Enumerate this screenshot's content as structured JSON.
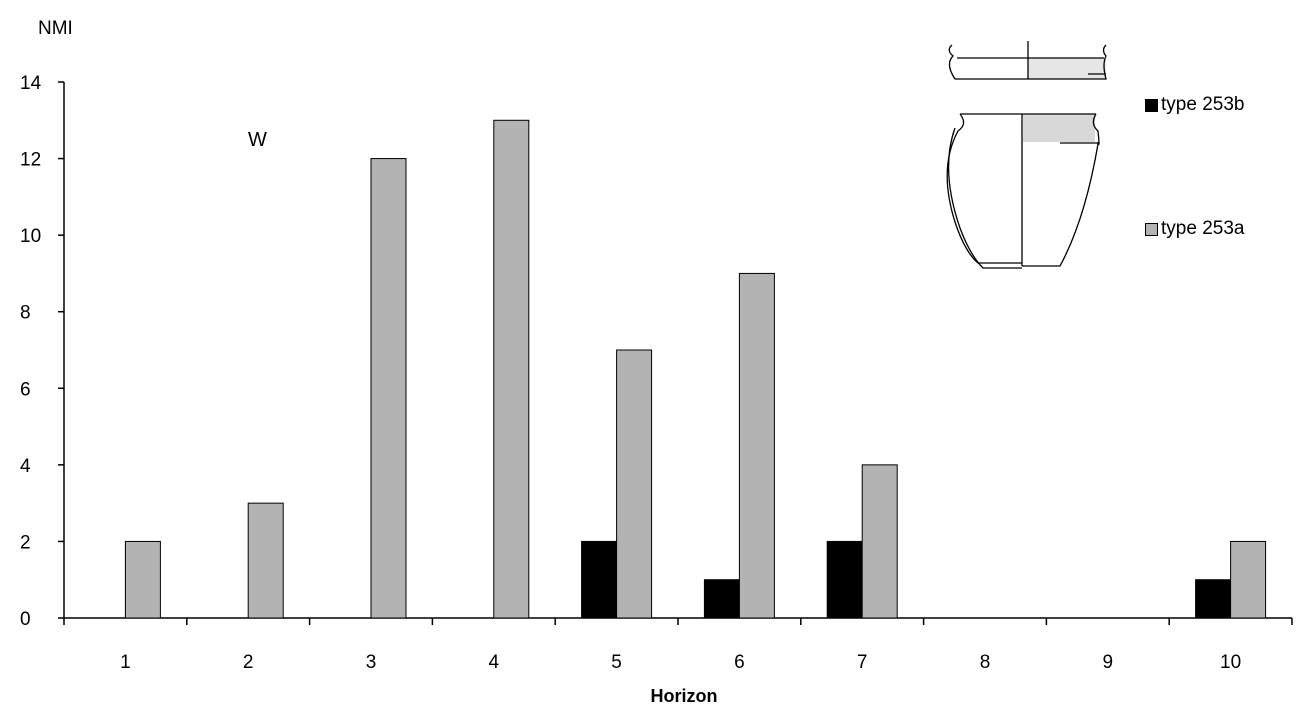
{
  "chart_data": {
    "type": "bar",
    "ylabel": "NMI",
    "xlabel": "Horizon",
    "annotation": "W",
    "categories": [
      "1",
      "2",
      "3",
      "4",
      "5",
      "6",
      "7",
      "8",
      "9",
      "10"
    ],
    "ylim": [
      0,
      14
    ],
    "yticks": [
      0,
      2,
      4,
      6,
      8,
      10,
      12,
      14
    ],
    "grid": false,
    "legend_position": "top-right",
    "series": [
      {
        "name": "type 253b",
        "color": "#000000",
        "values": [
          0,
          0,
          0,
          0,
          2,
          1,
          2,
          0,
          0,
          1
        ]
      },
      {
        "name": "type 253a",
        "color": "#b3b3b3",
        "values": [
          2,
          3,
          12,
          13,
          7,
          9,
          4,
          0,
          0,
          2
        ]
      }
    ]
  }
}
